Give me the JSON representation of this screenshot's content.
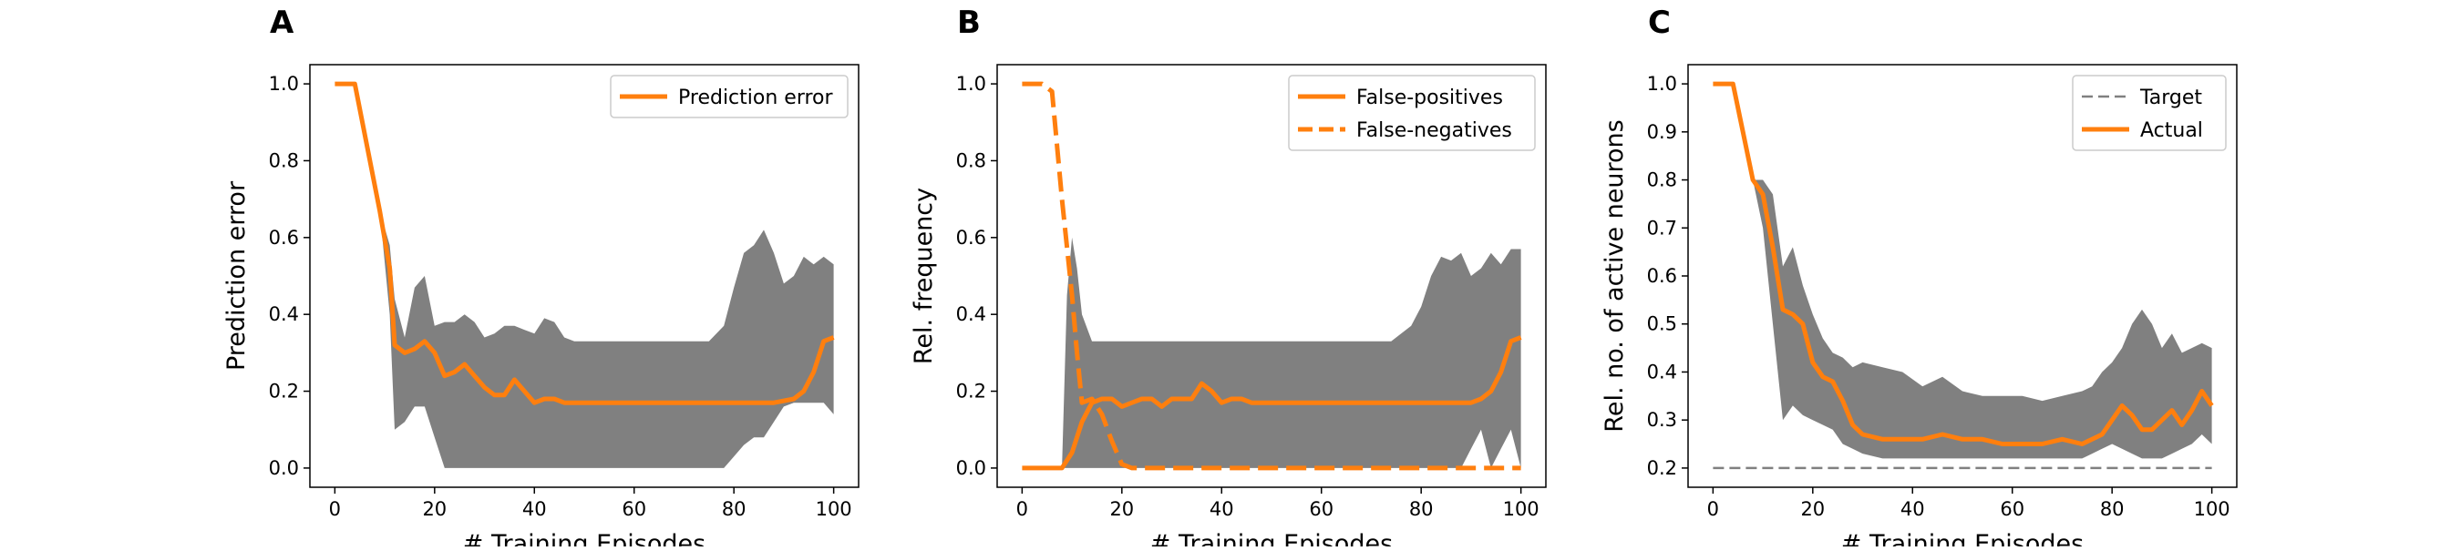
{
  "figure": {
    "panel_count": 3
  },
  "chart_data": [
    {
      "panel": "A",
      "type": "line",
      "xlabel": "# Training Episodes",
      "ylabel": "Prediction error",
      "xlim": [
        -5,
        105
      ],
      "ylim": [
        -0.05,
        1.05
      ],
      "xticks": [
        "0",
        "20",
        "40",
        "60",
        "80",
        "100"
      ],
      "xtick_values": [
        0,
        20,
        40,
        60,
        80,
        100
      ],
      "yticks": [
        "0.0",
        "0.2",
        "0.4",
        "0.6",
        "0.8",
        "1.0"
      ],
      "ytick_values": [
        0.0,
        0.2,
        0.4,
        0.6,
        0.8,
        1.0
      ],
      "legend_position": "top-right",
      "colors": {
        "line": "#ff7f0e",
        "band": "#808080"
      },
      "series": [
        {
          "name": "Prediction error",
          "style": "solid",
          "x": [
            0,
            4,
            9,
            11,
            12,
            14,
            16,
            18,
            20,
            22,
            24,
            26,
            28,
            30,
            32,
            34,
            36,
            38,
            40,
            42,
            44,
            46,
            48,
            50,
            60,
            70,
            80,
            88,
            92,
            94,
            96,
            98,
            100
          ],
          "values": [
            1.0,
            1.0,
            0.67,
            0.52,
            0.32,
            0.3,
            0.31,
            0.33,
            0.3,
            0.24,
            0.25,
            0.27,
            0.24,
            0.21,
            0.19,
            0.19,
            0.23,
            0.2,
            0.17,
            0.18,
            0.18,
            0.17,
            0.17,
            0.17,
            0.17,
            0.17,
            0.17,
            0.17,
            0.18,
            0.2,
            0.25,
            0.33,
            0.34
          ]
        }
      ],
      "band": {
        "x": [
          0,
          4,
          9,
          11,
          12,
          14,
          16,
          18,
          20,
          22,
          24,
          26,
          28,
          30,
          32,
          34,
          36,
          38,
          40,
          42,
          44,
          46,
          48,
          50,
          60,
          70,
          75,
          78,
          80,
          82,
          84,
          86,
          88,
          90,
          92,
          94,
          96,
          98,
          100
        ],
        "upper": [
          1.0,
          1.0,
          0.67,
          0.58,
          0.44,
          0.34,
          0.47,
          0.5,
          0.37,
          0.38,
          0.38,
          0.4,
          0.38,
          0.34,
          0.35,
          0.37,
          0.37,
          0.36,
          0.35,
          0.39,
          0.38,
          0.34,
          0.33,
          0.33,
          0.33,
          0.33,
          0.33,
          0.37,
          0.47,
          0.56,
          0.58,
          0.62,
          0.56,
          0.48,
          0.5,
          0.55,
          0.53,
          0.55,
          0.53
        ],
        "lower": [
          1.0,
          1.0,
          0.67,
          0.4,
          0.1,
          0.12,
          0.16,
          0.16,
          0.08,
          0.0,
          0.0,
          0.0,
          0.0,
          0.0,
          0.0,
          0.0,
          0.0,
          0.0,
          0.0,
          0.0,
          0.0,
          0.0,
          0.0,
          0.0,
          0.0,
          0.0,
          0.0,
          0.0,
          0.03,
          0.06,
          0.08,
          0.08,
          0.12,
          0.16,
          0.17,
          0.17,
          0.17,
          0.17,
          0.14
        ]
      }
    },
    {
      "panel": "B",
      "type": "line",
      "xlabel": "# Training Episodes",
      "ylabel": "Rel. frequency",
      "xlim": [
        -5,
        105
      ],
      "ylim": [
        -0.05,
        1.05
      ],
      "xticks": [
        "0",
        "20",
        "40",
        "60",
        "80",
        "100"
      ],
      "xtick_values": [
        0,
        20,
        40,
        60,
        80,
        100
      ],
      "yticks": [
        "0.0",
        "0.2",
        "0.4",
        "0.6",
        "0.8",
        "1.0"
      ],
      "ytick_values": [
        0.0,
        0.2,
        0.4,
        0.6,
        0.8,
        1.0
      ],
      "legend_position": "top-right",
      "colors": {
        "line": "#ff7f0e",
        "band": "#808080"
      },
      "series": [
        {
          "name": "False-positives",
          "style": "solid",
          "x": [
            0,
            6,
            8,
            10,
            12,
            14,
            16,
            18,
            20,
            22,
            24,
            26,
            28,
            30,
            32,
            34,
            36,
            38,
            40,
            42,
            44,
            46,
            50,
            60,
            70,
            80,
            88,
            90,
            92,
            94,
            96,
            98,
            100
          ],
          "values": [
            0.0,
            0.0,
            0.0,
            0.04,
            0.12,
            0.17,
            0.18,
            0.18,
            0.16,
            0.17,
            0.18,
            0.18,
            0.16,
            0.18,
            0.18,
            0.18,
            0.22,
            0.2,
            0.17,
            0.18,
            0.18,
            0.17,
            0.17,
            0.17,
            0.17,
            0.17,
            0.17,
            0.17,
            0.18,
            0.2,
            0.25,
            0.33,
            0.34
          ]
        },
        {
          "name": "False-negatives",
          "style": "dashed",
          "x": [
            0,
            4,
            6,
            8,
            10,
            11,
            12,
            14,
            16,
            18,
            20,
            22,
            30,
            40,
            50,
            60,
            70,
            80,
            90,
            100
          ],
          "values": [
            1.0,
            1.0,
            0.98,
            0.7,
            0.45,
            0.3,
            0.17,
            0.18,
            0.14,
            0.07,
            0.01,
            0.0,
            0.0,
            0.0,
            0.0,
            0.0,
            0.0,
            0.0,
            0.0,
            0.0
          ]
        }
      ],
      "band": {
        "x": [
          0,
          6,
          8,
          9,
          10,
          11,
          12,
          14,
          16,
          18,
          20,
          22,
          30,
          40,
          50,
          60,
          70,
          74,
          78,
          80,
          82,
          84,
          86,
          88,
          90,
          92,
          94,
          96,
          98,
          100
        ],
        "upper": [
          0.0,
          0.0,
          0.0,
          0.45,
          0.6,
          0.52,
          0.4,
          0.33,
          0.33,
          0.33,
          0.33,
          0.33,
          0.33,
          0.33,
          0.33,
          0.33,
          0.33,
          0.33,
          0.37,
          0.42,
          0.5,
          0.55,
          0.54,
          0.56,
          0.5,
          0.52,
          0.56,
          0.53,
          0.57,
          0.57
        ],
        "lower": [
          0.0,
          0.0,
          0.0,
          0.0,
          0.0,
          0.0,
          0.0,
          0.0,
          0.0,
          0.0,
          0.0,
          0.0,
          0.0,
          0.0,
          0.0,
          0.0,
          0.0,
          0.0,
          0.0,
          0.0,
          0.0,
          0.0,
          0.0,
          0.0,
          0.05,
          0.1,
          0.0,
          0.05,
          0.1,
          0.0
        ]
      }
    },
    {
      "panel": "C",
      "type": "line",
      "xlabel": "# Training Episodes",
      "ylabel": "Rel. no. of active neurons",
      "xlim": [
        -5,
        105
      ],
      "ylim": [
        0.16,
        1.04
      ],
      "xticks": [
        "0",
        "20",
        "40",
        "60",
        "80",
        "100"
      ],
      "xtick_values": [
        0,
        20,
        40,
        60,
        80,
        100
      ],
      "yticks": [
        "0.2",
        "0.3",
        "0.4",
        "0.5",
        "0.6",
        "0.7",
        "0.8",
        "0.9",
        "1.0"
      ],
      "ytick_values": [
        0.2,
        0.3,
        0.4,
        0.5,
        0.6,
        0.7,
        0.8,
        0.9,
        1.0
      ],
      "legend_position": "top-right",
      "colors": {
        "line": "#ff7f0e",
        "target": "#808080",
        "band": "#808080"
      },
      "series": [
        {
          "name": "Target",
          "style": "dashed",
          "x": [
            0,
            100
          ],
          "values": [
            0.2,
            0.2
          ]
        },
        {
          "name": "Actual",
          "style": "solid",
          "x": [
            0,
            4,
            6,
            8,
            10,
            12,
            14,
            16,
            18,
            20,
            22,
            24,
            26,
            28,
            30,
            34,
            38,
            42,
            46,
            50,
            54,
            58,
            62,
            66,
            70,
            74,
            76,
            78,
            80,
            82,
            84,
            86,
            88,
            90,
            92,
            94,
            96,
            98,
            100
          ],
          "values": [
            1.0,
            1.0,
            0.9,
            0.8,
            0.77,
            0.66,
            0.53,
            0.52,
            0.5,
            0.42,
            0.39,
            0.38,
            0.34,
            0.29,
            0.27,
            0.26,
            0.26,
            0.26,
            0.27,
            0.26,
            0.26,
            0.25,
            0.25,
            0.25,
            0.26,
            0.25,
            0.26,
            0.27,
            0.3,
            0.33,
            0.31,
            0.28,
            0.28,
            0.3,
            0.32,
            0.29,
            0.32,
            0.36,
            0.33
          ]
        }
      ],
      "band": {
        "x": [
          0,
          4,
          6,
          8,
          10,
          12,
          14,
          16,
          18,
          20,
          22,
          24,
          26,
          28,
          30,
          34,
          38,
          42,
          46,
          50,
          54,
          58,
          62,
          66,
          70,
          74,
          76,
          78,
          80,
          82,
          84,
          86,
          88,
          90,
          92,
          94,
          96,
          98,
          100
        ],
        "upper": [
          1.0,
          1.0,
          0.9,
          0.8,
          0.8,
          0.77,
          0.62,
          0.66,
          0.58,
          0.52,
          0.47,
          0.44,
          0.43,
          0.41,
          0.42,
          0.41,
          0.4,
          0.37,
          0.39,
          0.36,
          0.35,
          0.35,
          0.35,
          0.34,
          0.35,
          0.36,
          0.37,
          0.4,
          0.42,
          0.45,
          0.5,
          0.53,
          0.5,
          0.45,
          0.48,
          0.44,
          0.45,
          0.46,
          0.45
        ],
        "lower": [
          1.0,
          1.0,
          0.9,
          0.8,
          0.7,
          0.5,
          0.3,
          0.33,
          0.31,
          0.3,
          0.29,
          0.28,
          0.25,
          0.24,
          0.23,
          0.22,
          0.22,
          0.22,
          0.22,
          0.22,
          0.22,
          0.22,
          0.22,
          0.22,
          0.22,
          0.22,
          0.23,
          0.24,
          0.25,
          0.24,
          0.23,
          0.22,
          0.22,
          0.22,
          0.23,
          0.24,
          0.25,
          0.27,
          0.25
        ]
      }
    }
  ]
}
